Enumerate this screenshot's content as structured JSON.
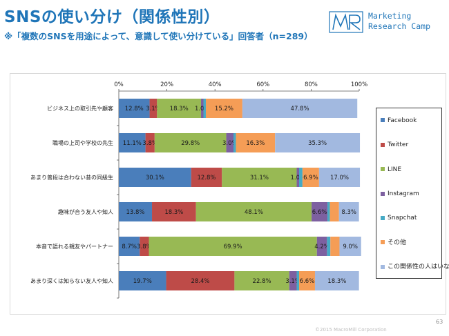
{
  "header": {
    "title": "SNSの使い分け（関係性別）",
    "subtitle": "※「複数のSNSを用途によって、意識して使い分けている」回答者（n=289）"
  },
  "logo": {
    "mark": "MR",
    "line1": "Marketing",
    "line2": "Research Camp"
  },
  "footer": {
    "copyright": "©2015 MacroMill Corporation",
    "page_number": "63"
  },
  "colors": {
    "Facebook": "#4a7ebb",
    "Twitter": "#be4b48",
    "LINE": "#98b954",
    "Instagram": "#7d60a0",
    "Snapchat": "#46aac5",
    "その他": "#f59d56",
    "この関係性の人はいない": "#a2b9e0"
  },
  "chart_data": {
    "type": "bar",
    "orientation": "horizontal",
    "stacked": "percent",
    "x_ticks": [
      "0%",
      "20%",
      "40%",
      "60%",
      "80%",
      "100%"
    ],
    "xlim": [
      0,
      100
    ],
    "legend_position": "right",
    "grid": false,
    "categories": [
      "ビジネス上の取引先や顧客",
      "職場の上司や学校の先生",
      "あまり普段は合わない昔の同級生",
      "趣味が合う友人や知人",
      "本音で語れる親友やパートナー",
      "あまり深くは知らない友人や知人"
    ],
    "series": [
      {
        "name": "Facebook",
        "values": [
          12.8,
          11.1,
          30.1,
          13.8,
          8.7,
          19.7
        ],
        "labels": [
          "12.8%",
          "11.1%",
          "30.1%",
          "13.8%",
          "8.7%",
          "19.7%"
        ]
      },
      {
        "name": "Twitter",
        "values": [
          3.1,
          3.8,
          12.8,
          18.3,
          3.8,
          28.4
        ],
        "labels": [
          "3.1%",
          "3.8%",
          "12.8%",
          "18.3%",
          "3.8%",
          "28.4%"
        ]
      },
      {
        "name": "LINE",
        "values": [
          18.3,
          29.8,
          31.1,
          48.1,
          69.9,
          22.8
        ],
        "labels": [
          "18.3%",
          "29.8%",
          "31.1%",
          "48.1%",
          "69.9%",
          "22.8%"
        ]
      },
      {
        "name": "Instagram",
        "values": [
          1.0,
          3.0,
          1.0,
          6.6,
          4.2,
          3.1
        ],
        "labels": [
          "1.0%",
          "3.0%",
          "1.0%",
          "6.6%",
          "4.2%",
          "3.1%"
        ]
      },
      {
        "name": "Snapchat",
        "values": [
          1.0,
          1.0,
          1.4,
          1.0,
          1.4,
          1.0
        ],
        "labels": [
          "",
          "",
          "",
          "",
          "",
          ""
        ]
      },
      {
        "name": "その他",
        "values": [
          15.2,
          16.3,
          6.9,
          3.8,
          3.8,
          6.6
        ],
        "labels": [
          "15.2%",
          "16.3%",
          "6.9%",
          "",
          "",
          "6.6%"
        ]
      },
      {
        "name": "この関係性の人はいない",
        "values": [
          47.8,
          35.3,
          17.0,
          8.3,
          9.0,
          18.3
        ],
        "labels": [
          "47.8%",
          "35.3%",
          "17.0%",
          "8.3%",
          "9.0%",
          "18.3%"
        ]
      }
    ]
  }
}
